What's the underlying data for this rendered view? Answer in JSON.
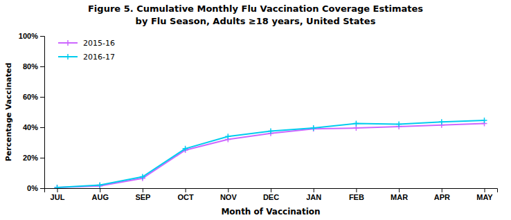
{
  "chart_data": {
    "type": "line",
    "title": "Figure 5. Cumulative Monthly Flu Vaccination Coverage Estimates",
    "subtitle": "by Flu Season, Adults ≥18 years, United States",
    "xlabel": "Month of Vaccination",
    "ylabel": "Percentage Vaccinated",
    "categories": [
      "JUL",
      "AUG",
      "SEP",
      "OCT",
      "NOV",
      "DEC",
      "JAN",
      "FEB",
      "MAR",
      "APR",
      "MAY"
    ],
    "series": [
      {
        "name": "2015-16",
        "color": "#CC66FF",
        "values": [
          0.5,
          1.5,
          6.5,
          25.0,
          32.0,
          36.0,
          39.0,
          39.5,
          40.5,
          41.5,
          42.5
        ]
      },
      {
        "name": "2016-17",
        "color": "#00CCEE",
        "values": [
          0.5,
          2.0,
          7.5,
          26.0,
          34.0,
          37.5,
          39.5,
          42.5,
          42.0,
          43.5,
          44.5
        ]
      }
    ],
    "ylim": [
      0,
      100
    ],
    "yticks": [
      {
        "value": 0,
        "label": "0%"
      },
      {
        "value": 20,
        "label": "20%"
      },
      {
        "value": 40,
        "label": "40%"
      },
      {
        "value": 60,
        "label": "60%"
      },
      {
        "value": 80,
        "label": "80%"
      },
      {
        "value": 100,
        "label": "100%"
      }
    ],
    "marker": "plus",
    "legend": "upper left",
    "grid": false
  }
}
